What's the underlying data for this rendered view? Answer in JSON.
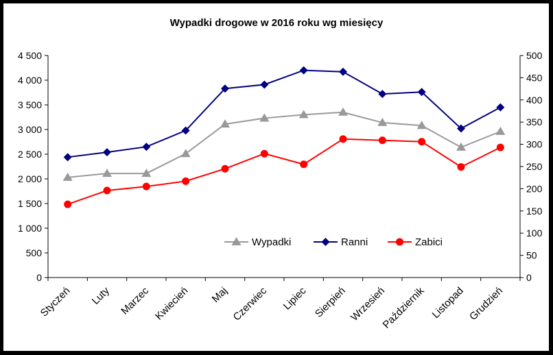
{
  "chart_data": {
    "type": "line",
    "title": "Wypadki drogowe w 2016 roku wg miesięcy",
    "categories": [
      "Styczeń",
      "Luty",
      "Marzec",
      "Kwiecień",
      "Maj",
      "Czerwiec",
      "Lipiec",
      "Sierpień",
      "Wrzesień",
      "Październik",
      "Listopad",
      "Grudzień"
    ],
    "y_left": {
      "range": [
        0,
        4500
      ],
      "ticks": [
        "0",
        "500",
        "1 000",
        "1 500",
        "2 000",
        "2 500",
        "3 000",
        "3 500",
        "4 000",
        "4 500"
      ]
    },
    "y_right": {
      "range": [
        0,
        500
      ],
      "ticks": [
        "0",
        "50",
        "100",
        "150",
        "200",
        "250",
        "300",
        "350",
        "400",
        "450",
        "500"
      ]
    },
    "series": [
      {
        "name": "Wypadki",
        "axis": "left",
        "color": "#999999",
        "marker": "triangle",
        "values": [
          2030,
          2110,
          2110,
          2510,
          3110,
          3230,
          3300,
          3350,
          3140,
          3080,
          2640,
          2960
        ]
      },
      {
        "name": "Ranni",
        "axis": "left",
        "color": "#000080",
        "marker": "diamond",
        "values": [
          2440,
          2540,
          2650,
          2980,
          3830,
          3910,
          4200,
          4170,
          3720,
          3760,
          3020,
          3450
        ]
      },
      {
        "name": "Zabici",
        "axis": "right",
        "color": "#ff0000",
        "marker": "circle",
        "values": [
          165,
          196,
          205,
          217,
          245,
          279,
          255,
          312,
          309,
          306,
          249,
          293
        ]
      }
    ],
    "legend_placement": "inside-bottom-center",
    "grid": false
  }
}
